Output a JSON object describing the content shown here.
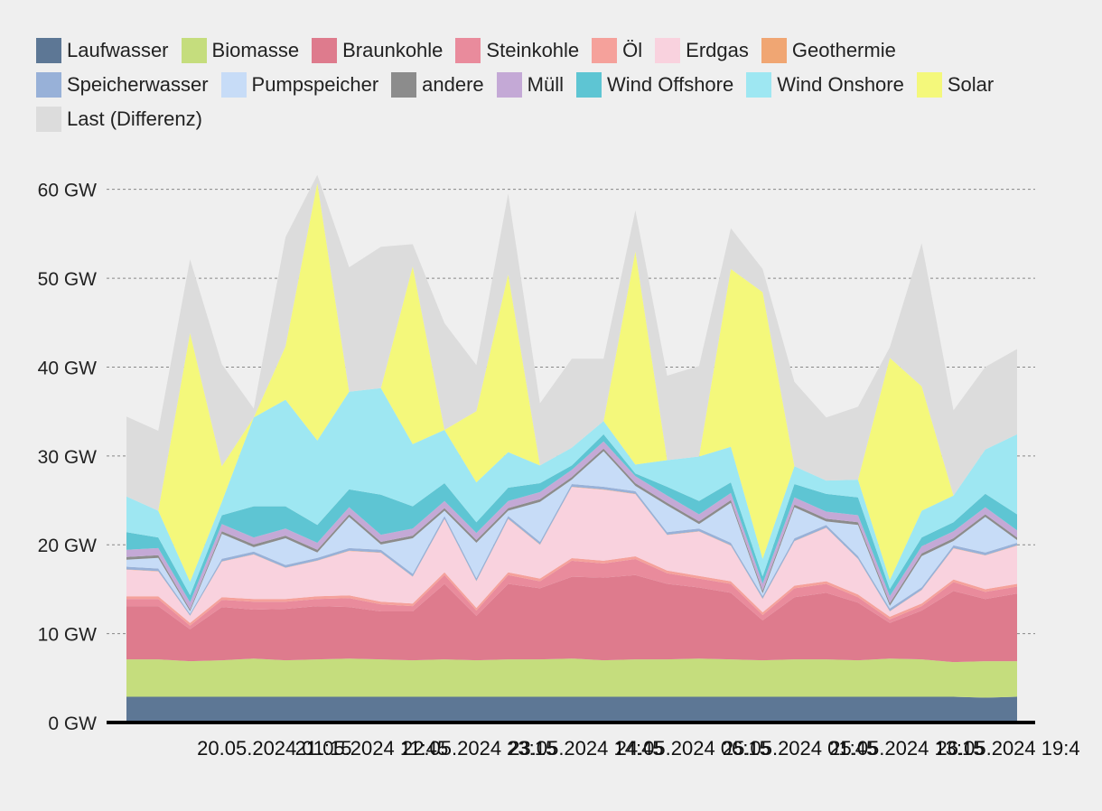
{
  "chart_data": {
    "type": "area",
    "stacked": true,
    "title": "",
    "xlabel": "",
    "ylabel": "",
    "ylim": [
      0,
      62
    ],
    "unit": "GW",
    "y_ticks": [
      "0 GW",
      "10 GW",
      "20 GW",
      "30 GW",
      "40 GW",
      "50 GW",
      "60 GW"
    ],
    "y_tick_values": [
      0,
      10,
      20,
      30,
      40,
      50,
      60
    ],
    "x_ticks": [
      "20.05.2024 01:15",
      "21.05.2024 11:45",
      "22.05.2024 23:15",
      "23.05.2024 14:45",
      "24.05.2024 06:15",
      "25.05.2024 01:45",
      "25.05.2024 13:15",
      "26.05.2024 19:4"
    ],
    "x_tick_positions": [
      0.13,
      0.24,
      0.36,
      0.48,
      0.6,
      0.72,
      0.84,
      0.96
    ],
    "x_range": [
      0,
      168
    ],
    "x_unit": "hours since 19.05.2024 21:00",
    "x": [
      0,
      6,
      12,
      18,
      24,
      30,
      36,
      42,
      48,
      54,
      60,
      66,
      72,
      78,
      84,
      90,
      96,
      102,
      108,
      114,
      120,
      126,
      132,
      138,
      144,
      150,
      156,
      162,
      168
    ],
    "series": [
      {
        "name": "Laufwasser",
        "color": "#5d7795",
        "values": [
          2.9,
          2.9,
          2.9,
          2.9,
          2.9,
          2.9,
          2.9,
          2.9,
          2.9,
          2.9,
          2.9,
          2.9,
          2.9,
          2.9,
          2.9,
          2.9,
          2.9,
          2.9,
          2.9,
          2.9,
          2.9,
          2.9,
          2.9,
          2.9,
          2.9,
          2.9,
          2.9,
          2.8,
          2.9
        ]
      },
      {
        "name": "Biomasse",
        "color": "#c5dd7d",
        "values": [
          4.2,
          4.2,
          4.0,
          4.1,
          4.3,
          4.1,
          4.2,
          4.3,
          4.2,
          4.1,
          4.2,
          4.1,
          4.2,
          4.2,
          4.3,
          4.1,
          4.2,
          4.2,
          4.3,
          4.2,
          4.1,
          4.2,
          4.2,
          4.1,
          4.3,
          4.2,
          3.9,
          4.1,
          4.0
        ]
      },
      {
        "name": "Braunkohle",
        "color": "#de7b8d",
        "values": [
          6.0,
          6.0,
          3.6,
          6.0,
          5.5,
          5.8,
          6.0,
          5.8,
          5.4,
          5.5,
          8.5,
          5.0,
          8.5,
          8.0,
          9.2,
          9.3,
          9.5,
          8.5,
          8.0,
          7.5,
          4.5,
          7.0,
          7.5,
          6.5,
          4.0,
          5.5,
          8.0,
          7.0,
          7.6
        ]
      },
      {
        "name": "Steinkohle",
        "color": "#e98b9c",
        "values": [
          0.8,
          0.8,
          0.4,
          0.8,
          0.9,
          0.8,
          0.8,
          1.0,
          0.8,
          0.6,
          1.0,
          0.6,
          1.0,
          0.8,
          1.8,
          1.6,
          1.8,
          1.2,
          1.0,
          1.0,
          0.6,
          1.0,
          1.0,
          0.6,
          0.4,
          0.5,
          1.0,
          0.8,
          0.8
        ]
      },
      {
        "name": "Öl",
        "color": "#f5a19b",
        "values": [
          0.3,
          0.3,
          0.3,
          0.3,
          0.3,
          0.3,
          0.3,
          0.3,
          0.3,
          0.3,
          0.3,
          0.3,
          0.3,
          0.3,
          0.3,
          0.3,
          0.3,
          0.3,
          0.3,
          0.3,
          0.3,
          0.3,
          0.3,
          0.3,
          0.3,
          0.3,
          0.3,
          0.3,
          0.3
        ]
      },
      {
        "name": "Erdgas",
        "color": "#f9d2de",
        "values": [
          3.0,
          2.8,
          0.8,
          4.0,
          5.0,
          3.5,
          4.0,
          5.0,
          5.5,
          3.0,
          6.0,
          3.0,
          6.0,
          3.8,
          8.0,
          8.0,
          7.0,
          4.0,
          5.0,
          4.0,
          1.5,
          5.0,
          6.0,
          4.0,
          0.6,
          1.5,
          3.5,
          3.8,
          4.3
        ]
      },
      {
        "name": "Geothermie",
        "color": "#f0a673",
        "values": [
          0.03,
          0.03,
          0.03,
          0.03,
          0.03,
          0.03,
          0.03,
          0.03,
          0.03,
          0.03,
          0.03,
          0.03,
          0.03,
          0.03,
          0.03,
          0.03,
          0.03,
          0.03,
          0.03,
          0.03,
          0.03,
          0.03,
          0.03,
          0.03,
          0.03,
          0.03,
          0.03,
          0.03,
          0.03
        ]
      },
      {
        "name": "Speicherwasser",
        "color": "#98b1d8",
        "values": [
          0.3,
          0.3,
          0.2,
          0.3,
          0.3,
          0.3,
          0.3,
          0.3,
          0.3,
          0.3,
          0.3,
          0.3,
          0.3,
          0.3,
          0.3,
          0.3,
          0.3,
          0.3,
          0.3,
          0.3,
          0.3,
          0.3,
          0.3,
          0.3,
          0.3,
          0.3,
          0.3,
          0.3,
          0.3
        ]
      },
      {
        "name": "Pumpspeicher",
        "color": "#c7dcf7",
        "values": [
          0.8,
          1.2,
          0.3,
          2.8,
          0.5,
          3.0,
          0.6,
          3.5,
          0.6,
          4.0,
          0.6,
          4.0,
          0.6,
          4.5,
          0.5,
          4.0,
          0.6,
          3.0,
          0.5,
          4.5,
          0.3,
          3.5,
          0.4,
          3.5,
          0.3,
          3.5,
          0.5,
          4.0,
          0.3
        ]
      },
      {
        "name": "andere",
        "color": "#8c8c8c",
        "values": [
          0.3,
          0.3,
          0.2,
          0.3,
          0.3,
          0.3,
          0.3,
          0.3,
          0.3,
          0.3,
          0.3,
          0.3,
          0.3,
          0.3,
          0.3,
          0.3,
          0.3,
          0.3,
          0.3,
          0.3,
          0.3,
          0.3,
          0.3,
          0.3,
          0.3,
          0.3,
          0.3,
          0.3,
          0.3
        ]
      },
      {
        "name": "Müll",
        "color": "#c4a9d6",
        "values": [
          0.8,
          0.8,
          0.8,
          0.8,
          0.8,
          0.8,
          0.8,
          0.8,
          0.8,
          0.8,
          0.8,
          0.8,
          0.8,
          0.8,
          0.8,
          0.8,
          0.8,
          0.8,
          0.8,
          0.8,
          0.8,
          0.8,
          0.8,
          0.8,
          0.8,
          0.8,
          0.8,
          0.8,
          0.8
        ]
      },
      {
        "name": "Wind Offshore",
        "color": "#5ec5d3",
        "values": [
          2.0,
          1.2,
          0.8,
          1.0,
          3.5,
          2.5,
          2.0,
          2.0,
          4.5,
          2.5,
          2.0,
          1.2,
          1.5,
          1.0,
          0.5,
          0.8,
          0.3,
          1.0,
          1.5,
          1.2,
          0.8,
          1.5,
          2.0,
          2.0,
          0.8,
          1.0,
          1.0,
          1.5,
          1.8
        ]
      },
      {
        "name": "Wind Onshore",
        "color": "#9ee7f2",
        "values": [
          4.0,
          3.0,
          1.5,
          1.5,
          10.0,
          12.0,
          9.5,
          11.0,
          12.0,
          7.0,
          6.0,
          4.5,
          4.0,
          2.0,
          2.0,
          1.5,
          1.0,
          3.0,
          5.0,
          4.0,
          2.0,
          2.0,
          1.5,
          2.0,
          1.0,
          3.0,
          3.0,
          5.0,
          9.0
        ]
      },
      {
        "name": "Solar",
        "color": "#f4f87b",
        "values": [
          0.0,
          0.0,
          28.0,
          4.0,
          0.0,
          6.0,
          29.0,
          0.0,
          0.0,
          20.0,
          0.0,
          8.0,
          20.0,
          0.0,
          0.0,
          0.0,
          24.0,
          0.0,
          0.0,
          20.0,
          30.0,
          0.0,
          0.0,
          0.0,
          25.0,
          14.0,
          0.0,
          0.0,
          0.0
        ]
      },
      {
        "name": "Last (Differenz)",
        "color": "#dcdcdc",
        "values": [
          9.0,
          9.0,
          8.3,
          11.5,
          1.0,
          12.3,
          0.9,
          14.0,
          15.9,
          2.5,
          12.0,
          5.2,
          9.1,
          7.0,
          10.0,
          7.0,
          4.6,
          9.5,
          10.2,
          4.6,
          2.6,
          9.5,
          7.1,
          8.2,
          1.2,
          16.1,
          9.6,
          9.3,
          9.6
        ]
      }
    ]
  }
}
